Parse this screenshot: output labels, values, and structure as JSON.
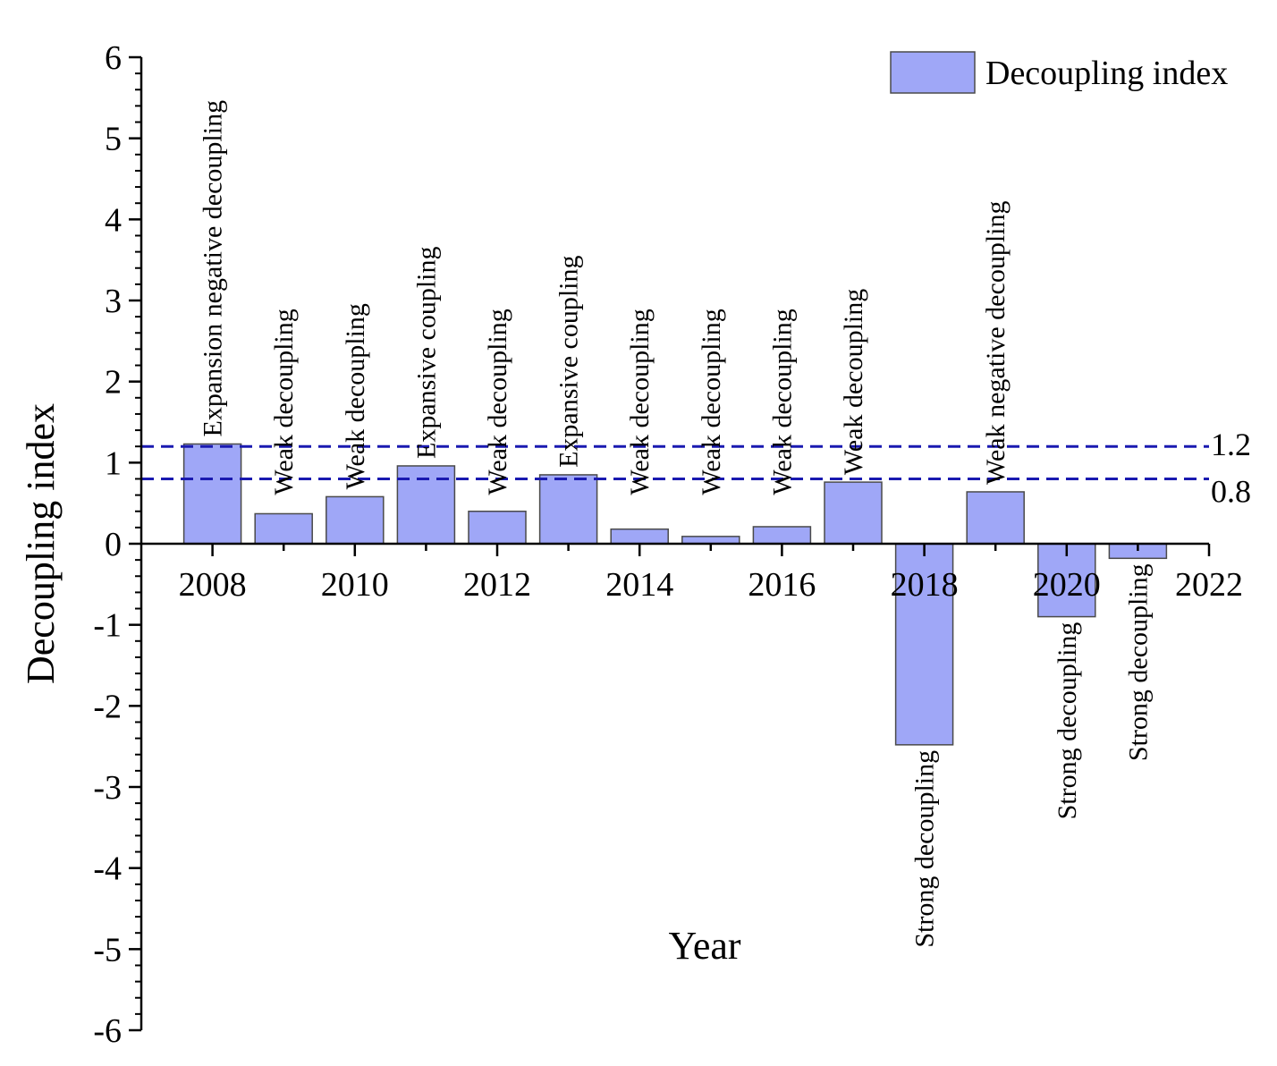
{
  "chart_data": {
    "type": "bar",
    "title": "",
    "xlabel": "Year",
    "ylabel": "Decoupling index",
    "xlim": [
      2007,
      2022
    ],
    "ylim": [
      -6,
      6
    ],
    "x_ticks": [
      2008,
      2010,
      2012,
      2014,
      2016,
      2018,
      2020,
      2022
    ],
    "y_ticks": [
      -6,
      -5,
      -4,
      -3,
      -2,
      -1,
      0,
      1,
      2,
      3,
      4,
      5,
      6
    ],
    "bar_color": "#9fa7f7",
    "bar_edge_color": "#4a4a4a",
    "legend": {
      "label": "Decoupling index",
      "position": "top-right"
    },
    "reference_lines": [
      {
        "value": 1.2,
        "label": "1.2",
        "color": "#1a1ab0",
        "style": "dashed"
      },
      {
        "value": 0.8,
        "label": "0.8",
        "color": "#1a1ab0",
        "style": "dashed"
      }
    ],
    "data": [
      {
        "year": 2008,
        "value": 1.23,
        "state": "Expansion negative decoupling"
      },
      {
        "year": 2009,
        "value": 0.37,
        "state": "Weak decoupling"
      },
      {
        "year": 2010,
        "value": 0.58,
        "state": "Weak decoupling"
      },
      {
        "year": 2011,
        "value": 0.96,
        "state": "Expansive coupling"
      },
      {
        "year": 2012,
        "value": 0.4,
        "state": "Weak decoupling"
      },
      {
        "year": 2013,
        "value": 0.85,
        "state": "Expansive coupling"
      },
      {
        "year": 2014,
        "value": 0.18,
        "state": "Weak decoupling"
      },
      {
        "year": 2015,
        "value": 0.09,
        "state": "Weak decoupling"
      },
      {
        "year": 2016,
        "value": 0.21,
        "state": "Weak decoupling"
      },
      {
        "year": 2017,
        "value": 0.76,
        "state": "Weak decoupling"
      },
      {
        "year": 2018,
        "value": -2.48,
        "state": "Strong decoupling"
      },
      {
        "year": 2019,
        "value": 0.64,
        "state": "Weak negative decoupling"
      },
      {
        "year": 2020,
        "value": -0.9,
        "state": "Strong decoupling"
      },
      {
        "year": 2021,
        "value": -0.18,
        "state": "Strong decoupling"
      }
    ]
  }
}
